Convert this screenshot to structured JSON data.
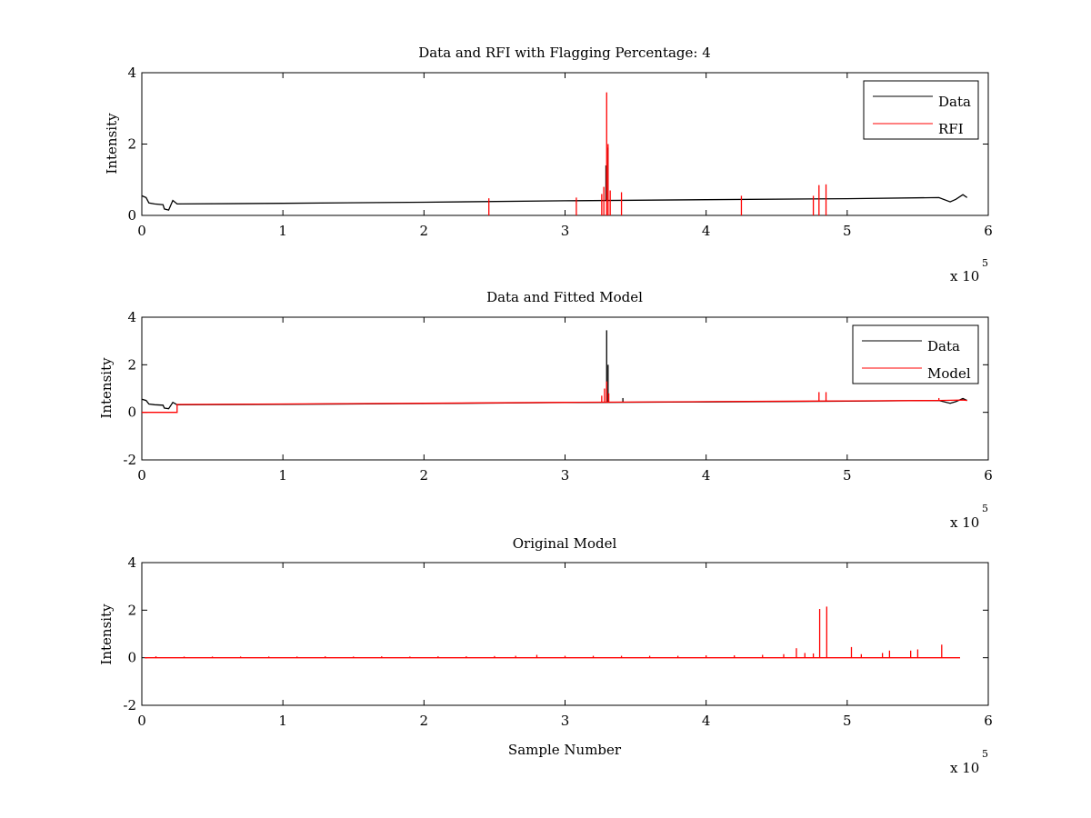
{
  "colors": {
    "data": "#000000",
    "rfi": "#ff0000",
    "axes": "#000000",
    "background": "#ffffff"
  },
  "chart_data": [
    {
      "type": "line",
      "title": "Data and RFI with Flagging Percentage: 4",
      "xlabel": "",
      "ylabel": "Intensity",
      "xlim": [
        0,
        600000
      ],
      "ylim": [
        0,
        4
      ],
      "xticks": [
        0,
        1,
        2,
        3,
        4,
        5,
        6
      ],
      "yticks": [
        0,
        2,
        4
      ],
      "x_multiplier_label": "x 10",
      "x_multiplier_exponent": "5",
      "legend": {
        "position": "top-right",
        "entries": [
          "Data",
          "RFI"
        ]
      },
      "grid": false,
      "series": [
        {
          "name": "Data",
          "color": "#000000",
          "baseline": [
            [
              0,
              0.55
            ],
            [
              3000,
              0.5
            ],
            [
              5000,
              0.35
            ],
            [
              9000,
              0.32
            ],
            [
              15000,
              0.3
            ],
            [
              16000,
              0.18
            ],
            [
              19000,
              0.15
            ],
            [
              22000,
              0.42
            ],
            [
              25000,
              0.32
            ],
            [
              100000,
              0.34
            ],
            [
              200000,
              0.37
            ],
            [
              300000,
              0.41
            ],
            [
              400000,
              0.44
            ],
            [
              500000,
              0.47
            ],
            [
              565000,
              0.5
            ],
            [
              573000,
              0.38
            ],
            [
              577000,
              0.45
            ],
            [
              582000,
              0.58
            ],
            [
              585000,
              0.5
            ]
          ],
          "spikes": [
            [
              329000,
              1.4
            ],
            [
              330500,
              1.9
            ]
          ]
        },
        {
          "name": "RFI",
          "color": "#ff0000",
          "spikes": [
            [
              246000,
              0.48
            ],
            [
              308000,
              0.5
            ],
            [
              326000,
              0.6
            ],
            [
              327500,
              0.8
            ],
            [
              329500,
              3.45
            ],
            [
              330500,
              2.0
            ],
            [
              332000,
              0.7
            ],
            [
              340000,
              0.65
            ],
            [
              425000,
              0.55
            ],
            [
              476000,
              0.55
            ],
            [
              480000,
              0.85
            ],
            [
              485000,
              0.87
            ]
          ]
        }
      ]
    },
    {
      "type": "line",
      "title": "Data and Fitted Model",
      "xlabel": "",
      "ylabel": "Intensity",
      "xlim": [
        0,
        600000
      ],
      "ylim": [
        -2,
        4
      ],
      "xticks": [
        0,
        1,
        2,
        3,
        4,
        5,
        6
      ],
      "yticks": [
        -2,
        0,
        2,
        4
      ],
      "x_multiplier_label": "x 10",
      "x_multiplier_exponent": "5",
      "legend": {
        "position": "top-right",
        "entries": [
          "Data",
          "Model"
        ]
      },
      "grid": false,
      "series": [
        {
          "name": "Data",
          "color": "#000000",
          "baseline": [
            [
              0,
              0.55
            ],
            [
              3000,
              0.5
            ],
            [
              5000,
              0.35
            ],
            [
              9000,
              0.32
            ],
            [
              15000,
              0.3
            ],
            [
              16000,
              0.18
            ],
            [
              19000,
              0.15
            ],
            [
              22000,
              0.42
            ],
            [
              25000,
              0.32
            ],
            [
              100000,
              0.34
            ],
            [
              200000,
              0.37
            ],
            [
              300000,
              0.41
            ],
            [
              400000,
              0.44
            ],
            [
              500000,
              0.47
            ],
            [
              565000,
              0.5
            ],
            [
              573000,
              0.38
            ],
            [
              577000,
              0.45
            ],
            [
              582000,
              0.58
            ],
            [
              585000,
              0.5
            ]
          ],
          "spikes": [
            [
              329500,
              3.45
            ],
            [
              330500,
              2.0
            ],
            [
              341000,
              0.6
            ]
          ]
        },
        {
          "name": "Model",
          "color": "#ff0000",
          "baseline": [
            [
              0,
              0.0
            ],
            [
              25000,
              0.0
            ],
            [
              25000,
              0.33
            ],
            [
              100000,
              0.35
            ],
            [
              200000,
              0.38
            ],
            [
              300000,
              0.42
            ],
            [
              400000,
              0.45
            ],
            [
              500000,
              0.48
            ],
            [
              565000,
              0.5
            ],
            [
              582000,
              0.52
            ],
            [
              585000,
              0.5
            ]
          ],
          "spikes": [
            [
              326000,
              0.7
            ],
            [
              328000,
              1.0
            ],
            [
              329500,
              1.3
            ],
            [
              331000,
              0.8
            ],
            [
              480000,
              0.85
            ],
            [
              485000,
              0.85
            ],
            [
              565000,
              0.6
            ]
          ]
        }
      ]
    },
    {
      "type": "line",
      "title": "Original Model",
      "xlabel": "Sample Number",
      "ylabel": "Intensity",
      "xlim": [
        0,
        600000
      ],
      "ylim": [
        -2,
        4
      ],
      "xticks": [
        0,
        1,
        2,
        3,
        4,
        5,
        6
      ],
      "yticks": [
        -2,
        0,
        2,
        4
      ],
      "x_multiplier_label": "x 10",
      "x_multiplier_exponent": "5",
      "legend": null,
      "grid": false,
      "series": [
        {
          "name": "",
          "color": "#ff0000",
          "baseline": [
            [
              2000,
              0.0
            ],
            [
              580000,
              0.0
            ]
          ],
          "spikes": [
            [
              10000,
              0.06
            ],
            [
              30000,
              0.05
            ],
            [
              50000,
              0.05
            ],
            [
              70000,
              0.05
            ],
            [
              90000,
              0.05
            ],
            [
              110000,
              0.05
            ],
            [
              130000,
              0.06
            ],
            [
              150000,
              0.05
            ],
            [
              170000,
              0.06
            ],
            [
              190000,
              0.05
            ],
            [
              210000,
              0.06
            ],
            [
              230000,
              0.06
            ],
            [
              250000,
              0.07
            ],
            [
              265000,
              0.08
            ],
            [
              280000,
              0.12
            ],
            [
              300000,
              0.08
            ],
            [
              320000,
              0.08
            ],
            [
              340000,
              0.08
            ],
            [
              360000,
              0.08
            ],
            [
              380000,
              0.08
            ],
            [
              400000,
              0.1
            ],
            [
              420000,
              0.1
            ],
            [
              440000,
              0.12
            ],
            [
              455000,
              0.15
            ],
            [
              464000,
              0.4
            ],
            [
              470000,
              0.2
            ],
            [
              476000,
              0.18
            ],
            [
              480500,
              2.05
            ],
            [
              485500,
              2.15
            ],
            [
              503000,
              0.45
            ],
            [
              510000,
              0.15
            ],
            [
              525000,
              0.2
            ],
            [
              530000,
              0.3
            ],
            [
              545000,
              0.3
            ],
            [
              550000,
              0.35
            ],
            [
              567000,
              0.55
            ]
          ]
        }
      ]
    }
  ]
}
